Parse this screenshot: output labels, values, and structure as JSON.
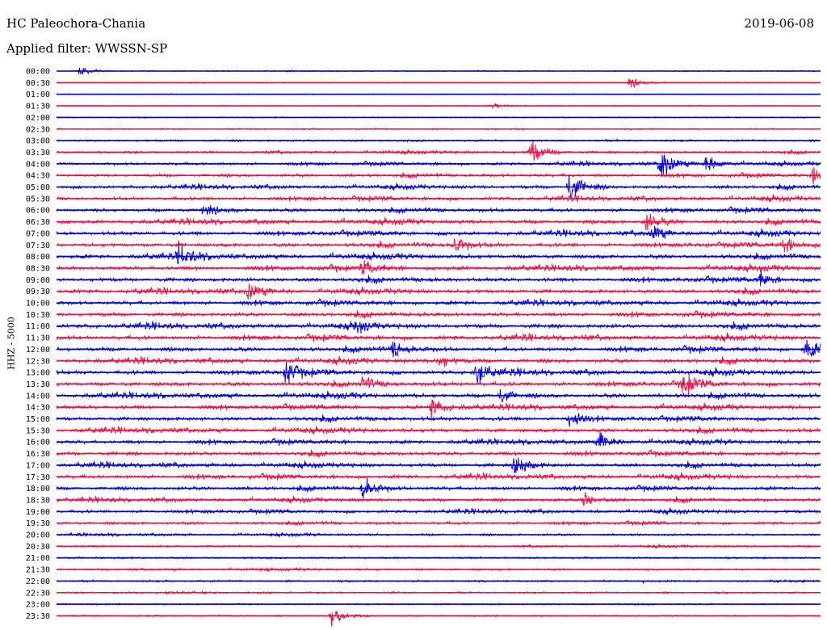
{
  "header": {
    "station": "HC Paleochora-Chania",
    "date": "2019-06-08",
    "filter": "Applied filter: WWSSN-SP"
  },
  "chart_data": {
    "type": "line",
    "title": "HC Paleochora-Chania",
    "subtitle": "Applied filter: WWSSN-SP",
    "date": "2019-06-08",
    "ylabel": "HHZ - 5000",
    "xlabel": "",
    "row_labels": [
      "00:00",
      "00:30",
      "01:00",
      "01:30",
      "02:00",
      "02:30",
      "03:00",
      "03:30",
      "04:00",
      "04:30",
      "05:00",
      "05:30",
      "06:00",
      "06:30",
      "07:00",
      "07:30",
      "08:00",
      "08:30",
      "09:00",
      "09:30",
      "10:00",
      "10:30",
      "11:00",
      "11:30",
      "12:00",
      "12:30",
      "13:00",
      "13:30",
      "14:00",
      "14:30",
      "15:00",
      "15:30",
      "16:00",
      "16:30",
      "17:00",
      "17:30",
      "18:00",
      "18:30",
      "19:00",
      "19:30",
      "20:00",
      "20:30",
      "21:00",
      "21:30",
      "22:00",
      "22:30",
      "23:00",
      "23:30"
    ],
    "row_activity": [
      0.15,
      0.12,
      0.08,
      0.1,
      0.12,
      0.22,
      0.35,
      0.45,
      0.55,
      0.6,
      0.65,
      0.7,
      0.75,
      0.8,
      0.8,
      0.8,
      0.85,
      0.85,
      0.85,
      0.8,
      0.8,
      0.8,
      0.85,
      0.85,
      0.85,
      0.85,
      0.85,
      0.85,
      0.85,
      0.8,
      0.8,
      0.8,
      0.75,
      0.75,
      0.75,
      0.75,
      0.7,
      0.65,
      0.6,
      0.5,
      0.4,
      0.35,
      0.35,
      0.35,
      0.3,
      0.3,
      0.25,
      0.25
    ],
    "events": [
      {
        "row": 0,
        "x": 0.03,
        "amp": 0.5
      },
      {
        "row": 1,
        "x": 0.75,
        "amp": 0.6
      },
      {
        "row": 3,
        "x": 0.57,
        "amp": 0.4
      },
      {
        "row": 7,
        "x": 0.62,
        "amp": 1.8
      },
      {
        "row": 8,
        "x": 0.79,
        "amp": 2.5
      },
      {
        "row": 8,
        "x": 0.85,
        "amp": 1.2
      },
      {
        "row": 9,
        "x": 0.99,
        "amp": 1.0
      },
      {
        "row": 10,
        "x": 0.67,
        "amp": 2.2
      },
      {
        "row": 12,
        "x": 0.19,
        "amp": 0.8
      },
      {
        "row": 13,
        "x": 0.77,
        "amp": 1.3
      },
      {
        "row": 14,
        "x": 0.78,
        "amp": 1.2
      },
      {
        "row": 15,
        "x": 0.52,
        "amp": 1.3
      },
      {
        "row": 15,
        "x": 0.95,
        "amp": 1.1
      },
      {
        "row": 16,
        "x": 0.16,
        "amp": 1.6
      },
      {
        "row": 17,
        "x": 0.4,
        "amp": 0.9
      },
      {
        "row": 18,
        "x": 0.92,
        "amp": 0.9
      },
      {
        "row": 19,
        "x": 0.25,
        "amp": 1.4
      },
      {
        "row": 22,
        "x": 0.39,
        "amp": 0.8
      },
      {
        "row": 24,
        "x": 0.44,
        "amp": 1.3
      },
      {
        "row": 24,
        "x": 0.98,
        "amp": 1.6
      },
      {
        "row": 25,
        "x": 0.5,
        "amp": 1.0
      },
      {
        "row": 26,
        "x": 0.3,
        "amp": 1.5
      },
      {
        "row": 26,
        "x": 0.55,
        "amp": 1.4
      },
      {
        "row": 27,
        "x": 0.82,
        "amp": 1.6
      },
      {
        "row": 27,
        "x": 0.4,
        "amp": 1.0
      },
      {
        "row": 28,
        "x": 0.58,
        "amp": 1.0
      },
      {
        "row": 29,
        "x": 0.49,
        "amp": 1.4
      },
      {
        "row": 30,
        "x": 0.67,
        "amp": 1.4
      },
      {
        "row": 32,
        "x": 0.71,
        "amp": 1.3
      },
      {
        "row": 34,
        "x": 0.6,
        "amp": 1.6
      },
      {
        "row": 36,
        "x": 0.4,
        "amp": 1.6
      },
      {
        "row": 37,
        "x": 0.69,
        "amp": 1.0
      },
      {
        "row": 47,
        "x": 0.36,
        "amp": 1.0
      }
    ],
    "series_colors": {
      "even_rows": "#0000dd",
      "odd_rows": "#ee1144"
    },
    "grid": false
  }
}
